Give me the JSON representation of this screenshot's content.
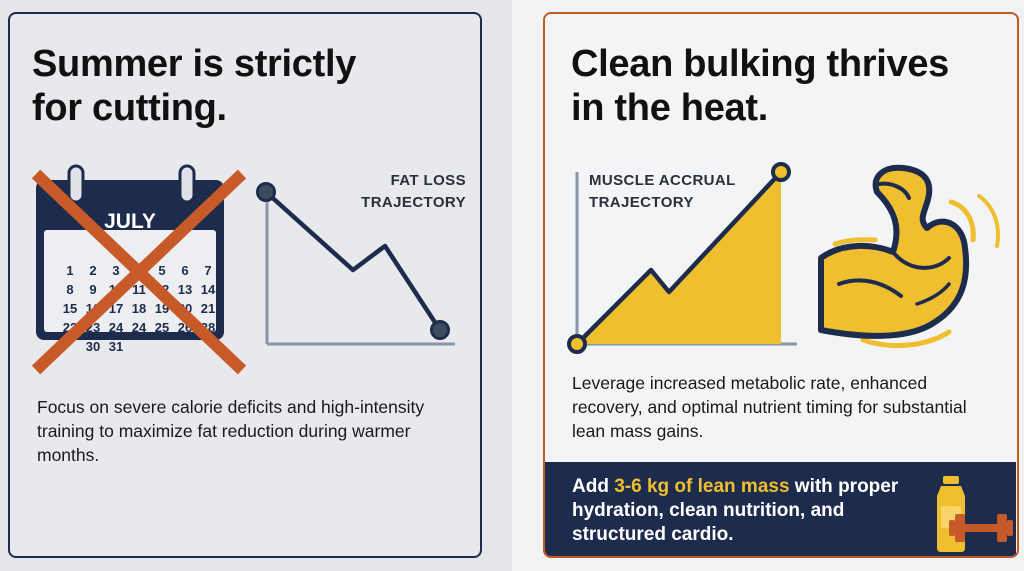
{
  "left_panel": {
    "headline_line1": "Summer is strictly",
    "headline_line2": "for cutting.",
    "calendar": {
      "month": "JULY",
      "rows": [
        [
          "1",
          "2",
          "3",
          "4",
          "5",
          "6",
          "7"
        ],
        [
          "8",
          "9",
          "10",
          "11",
          "12",
          "13",
          "14"
        ],
        [
          "15",
          "16",
          "17",
          "18",
          "19",
          "20",
          "21"
        ],
        [
          "22",
          "23",
          "24",
          "24",
          "25",
          "26",
          "28"
        ],
        [
          "",
          "30",
          "31",
          "",
          "",
          "",
          ""
        ]
      ]
    },
    "chart_label_line1": "FAT LOSS",
    "chart_label_line2": "TRAJECTORY",
    "description": "Focus on severe calorie deficits and high-intensity training to maximize fat reduction during warmer months.",
    "colors": {
      "border": "#1d2c4c",
      "cross": "#c85a2a",
      "line": "#1d2c4c"
    }
  },
  "right_panel": {
    "headline_line1": "Clean bulking thrives",
    "headline_line2": "in the heat.",
    "chart_label_line1": "MUSCLE ACCRUAL",
    "chart_label_line2": "TRAJECTORY",
    "description": "Leverage increased metabolic rate, enhanced recovery, and optimal nutrient timing for substantial lean mass gains.",
    "footer": {
      "prefix": "Add ",
      "highlight": "3-6 kg of lean mass",
      "suffix": " with proper hydration, clean nutrition, and structured cardio."
    },
    "icons": [
      "flexed-arm-icon",
      "water-bottle-icon",
      "dumbbell-icon"
    ],
    "colors": {
      "border": "#c15a24",
      "fill": "#f0bf2f",
      "navy": "#1d2c4c"
    }
  }
}
